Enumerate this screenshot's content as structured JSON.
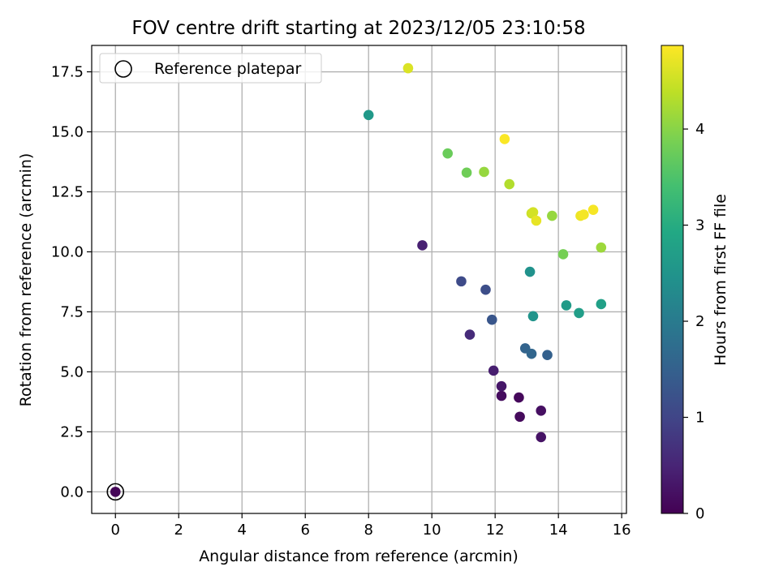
{
  "chart_data": {
    "type": "scatter",
    "title": "FOV centre drift starting at 2023/12/05 23:10:58",
    "xlabel": "Angular distance from reference (arcmin)",
    "ylabel": "Rotation from reference (arcmin)",
    "xlim": [
      -0.75,
      16.15
    ],
    "ylim": [
      -0.9,
      18.6
    ],
    "xticks": [
      0,
      2,
      4,
      6,
      8,
      10,
      12,
      14,
      16
    ],
    "yticks": [
      0.0,
      2.5,
      5.0,
      7.5,
      10.0,
      12.5,
      15.0,
      17.5
    ],
    "grid": true,
    "legend": {
      "placement": "top-left",
      "label": "Reference platepar"
    },
    "colorbar": {
      "label": "Hours from first FF file",
      "colormap": "viridis",
      "range": [
        0,
        4.87
      ],
      "ticks": [
        0,
        1,
        2,
        3,
        4
      ]
    },
    "reference_point": {
      "x": 0,
      "y": 0,
      "c": 0.05
    },
    "points": [
      {
        "x": 0.0,
        "y": 0.0,
        "c": 0.05
      },
      {
        "x": 12.75,
        "y": 3.93,
        "c": 0.1
      },
      {
        "x": 12.78,
        "y": 3.13,
        "c": 0.12
      },
      {
        "x": 12.2,
        "y": 4.0,
        "c": 0.15
      },
      {
        "x": 13.45,
        "y": 3.38,
        "c": 0.2
      },
      {
        "x": 13.45,
        "y": 2.28,
        "c": 0.25
      },
      {
        "x": 12.2,
        "y": 4.4,
        "c": 0.3
      },
      {
        "x": 11.95,
        "y": 5.05,
        "c": 0.4
      },
      {
        "x": 9.7,
        "y": 10.27,
        "c": 0.45
      },
      {
        "x": 11.2,
        "y": 6.55,
        "c": 0.6
      },
      {
        "x": 10.93,
        "y": 8.77,
        "c": 1.1
      },
      {
        "x": 11.7,
        "y": 8.42,
        "c": 1.15
      },
      {
        "x": 11.9,
        "y": 7.17,
        "c": 1.3
      },
      {
        "x": 13.65,
        "y": 5.7,
        "c": 1.5
      },
      {
        "x": 12.95,
        "y": 5.98,
        "c": 1.55
      },
      {
        "x": 13.15,
        "y": 5.75,
        "c": 1.6
      },
      {
        "x": 13.1,
        "y": 9.17,
        "c": 2.45
      },
      {
        "x": 13.2,
        "y": 7.32,
        "c": 2.5
      },
      {
        "x": 8.0,
        "y": 15.7,
        "c": 2.6
      },
      {
        "x": 14.25,
        "y": 7.77,
        "c": 2.65
      },
      {
        "x": 14.65,
        "y": 7.45,
        "c": 2.7
      },
      {
        "x": 15.35,
        "y": 7.82,
        "c": 2.75
      },
      {
        "x": 10.5,
        "y": 14.1,
        "c": 3.75
      },
      {
        "x": 11.1,
        "y": 13.3,
        "c": 3.8
      },
      {
        "x": 14.15,
        "y": 9.9,
        "c": 3.85
      },
      {
        "x": 11.65,
        "y": 13.33,
        "c": 4.1
      },
      {
        "x": 13.8,
        "y": 11.5,
        "c": 4.1
      },
      {
        "x": 15.35,
        "y": 10.18,
        "c": 4.15
      },
      {
        "x": 12.45,
        "y": 12.82,
        "c": 4.3
      },
      {
        "x": 13.15,
        "y": 11.6,
        "c": 4.5
      },
      {
        "x": 13.2,
        "y": 11.65,
        "c": 4.55
      },
      {
        "x": 9.25,
        "y": 17.65,
        "c": 4.6
      },
      {
        "x": 13.3,
        "y": 11.3,
        "c": 4.7
      },
      {
        "x": 14.7,
        "y": 11.5,
        "c": 4.75
      },
      {
        "x": 14.8,
        "y": 11.55,
        "c": 4.8
      },
      {
        "x": 15.1,
        "y": 11.75,
        "c": 4.82
      },
      {
        "x": 12.3,
        "y": 14.7,
        "c": 4.85
      }
    ]
  }
}
